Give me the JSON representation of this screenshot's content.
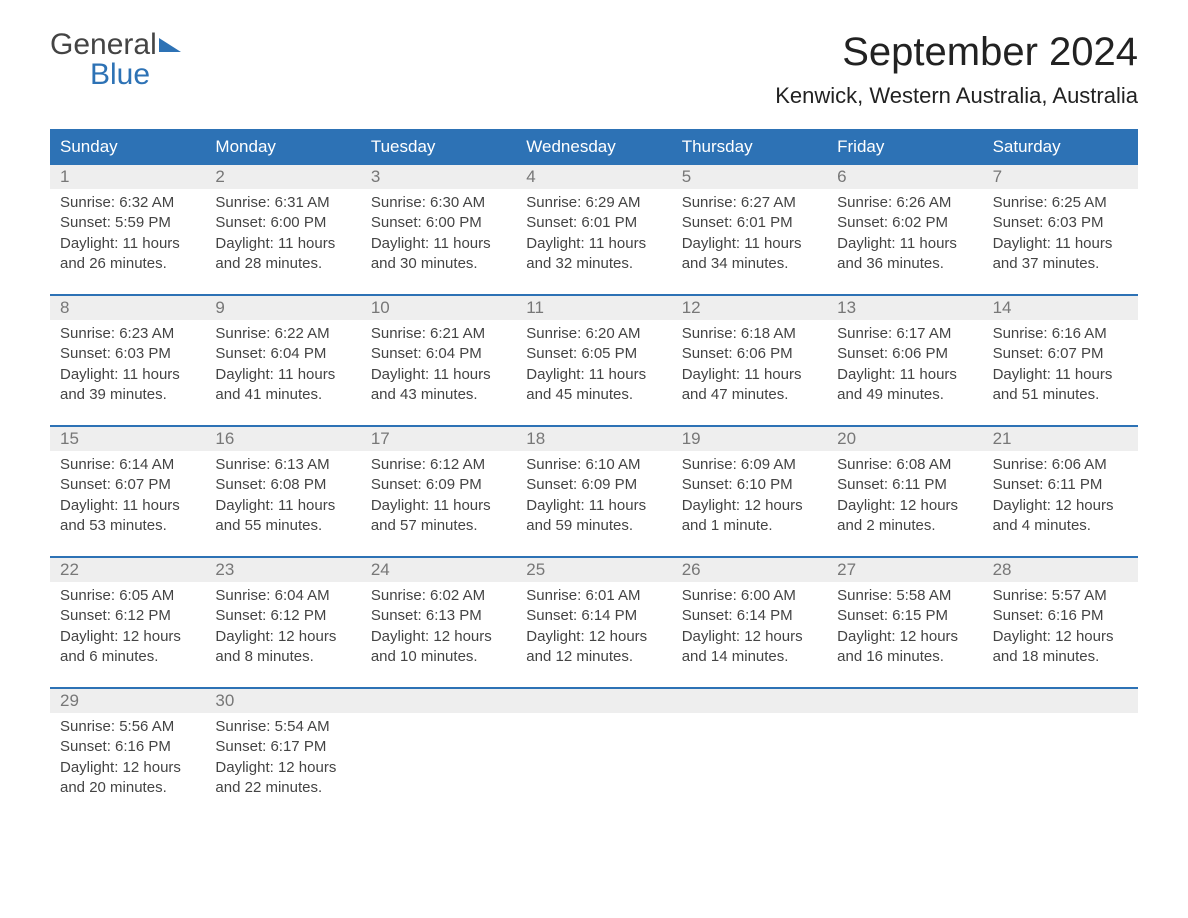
{
  "logo": {
    "line1": "General",
    "line2": "Blue"
  },
  "title": "September 2024",
  "location": "Kenwick, Western Australia, Australia",
  "colors": {
    "header_bg": "#2d72b5",
    "header_text": "#ffffff",
    "daynum_bg": "#eeeeee",
    "daynum_text": "#777777",
    "body_text": "#444444",
    "page_bg": "#ffffff",
    "week_divider": "#2d72b5"
  },
  "typography": {
    "title_fontsize": 40,
    "location_fontsize": 22,
    "header_fontsize": 17,
    "body_fontsize": 15
  },
  "day_headers": [
    "Sunday",
    "Monday",
    "Tuesday",
    "Wednesday",
    "Thursday",
    "Friday",
    "Saturday"
  ],
  "days": [
    {
      "n": "1",
      "sunrise": "6:32 AM",
      "sunset": "5:59 PM",
      "daylight": "11 hours and 26 minutes."
    },
    {
      "n": "2",
      "sunrise": "6:31 AM",
      "sunset": "6:00 PM",
      "daylight": "11 hours and 28 minutes."
    },
    {
      "n": "3",
      "sunrise": "6:30 AM",
      "sunset": "6:00 PM",
      "daylight": "11 hours and 30 minutes."
    },
    {
      "n": "4",
      "sunrise": "6:29 AM",
      "sunset": "6:01 PM",
      "daylight": "11 hours and 32 minutes."
    },
    {
      "n": "5",
      "sunrise": "6:27 AM",
      "sunset": "6:01 PM",
      "daylight": "11 hours and 34 minutes."
    },
    {
      "n": "6",
      "sunrise": "6:26 AM",
      "sunset": "6:02 PM",
      "daylight": "11 hours and 36 minutes."
    },
    {
      "n": "7",
      "sunrise": "6:25 AM",
      "sunset": "6:03 PM",
      "daylight": "11 hours and 37 minutes."
    },
    {
      "n": "8",
      "sunrise": "6:23 AM",
      "sunset": "6:03 PM",
      "daylight": "11 hours and 39 minutes."
    },
    {
      "n": "9",
      "sunrise": "6:22 AM",
      "sunset": "6:04 PM",
      "daylight": "11 hours and 41 minutes."
    },
    {
      "n": "10",
      "sunrise": "6:21 AM",
      "sunset": "6:04 PM",
      "daylight": "11 hours and 43 minutes."
    },
    {
      "n": "11",
      "sunrise": "6:20 AM",
      "sunset": "6:05 PM",
      "daylight": "11 hours and 45 minutes."
    },
    {
      "n": "12",
      "sunrise": "6:18 AM",
      "sunset": "6:06 PM",
      "daylight": "11 hours and 47 minutes."
    },
    {
      "n": "13",
      "sunrise": "6:17 AM",
      "sunset": "6:06 PM",
      "daylight": "11 hours and 49 minutes."
    },
    {
      "n": "14",
      "sunrise": "6:16 AM",
      "sunset": "6:07 PM",
      "daylight": "11 hours and 51 minutes."
    },
    {
      "n": "15",
      "sunrise": "6:14 AM",
      "sunset": "6:07 PM",
      "daylight": "11 hours and 53 minutes."
    },
    {
      "n": "16",
      "sunrise": "6:13 AM",
      "sunset": "6:08 PM",
      "daylight": "11 hours and 55 minutes."
    },
    {
      "n": "17",
      "sunrise": "6:12 AM",
      "sunset": "6:09 PM",
      "daylight": "11 hours and 57 minutes."
    },
    {
      "n": "18",
      "sunrise": "6:10 AM",
      "sunset": "6:09 PM",
      "daylight": "11 hours and 59 minutes."
    },
    {
      "n": "19",
      "sunrise": "6:09 AM",
      "sunset": "6:10 PM",
      "daylight": "12 hours and 1 minute."
    },
    {
      "n": "20",
      "sunrise": "6:08 AM",
      "sunset": "6:11 PM",
      "daylight": "12 hours and 2 minutes."
    },
    {
      "n": "21",
      "sunrise": "6:06 AM",
      "sunset": "6:11 PM",
      "daylight": "12 hours and 4 minutes."
    },
    {
      "n": "22",
      "sunrise": "6:05 AM",
      "sunset": "6:12 PM",
      "daylight": "12 hours and 6 minutes."
    },
    {
      "n": "23",
      "sunrise": "6:04 AM",
      "sunset": "6:12 PM",
      "daylight": "12 hours and 8 minutes."
    },
    {
      "n": "24",
      "sunrise": "6:02 AM",
      "sunset": "6:13 PM",
      "daylight": "12 hours and 10 minutes."
    },
    {
      "n": "25",
      "sunrise": "6:01 AM",
      "sunset": "6:14 PM",
      "daylight": "12 hours and 12 minutes."
    },
    {
      "n": "26",
      "sunrise": "6:00 AM",
      "sunset": "6:14 PM",
      "daylight": "12 hours and 14 minutes."
    },
    {
      "n": "27",
      "sunrise": "5:58 AM",
      "sunset": "6:15 PM",
      "daylight": "12 hours and 16 minutes."
    },
    {
      "n": "28",
      "sunrise": "5:57 AM",
      "sunset": "6:16 PM",
      "daylight": "12 hours and 18 minutes."
    },
    {
      "n": "29",
      "sunrise": "5:56 AM",
      "sunset": "6:16 PM",
      "daylight": "12 hours and 20 minutes."
    },
    {
      "n": "30",
      "sunrise": "5:54 AM",
      "sunset": "6:17 PM",
      "daylight": "12 hours and 22 minutes."
    }
  ],
  "labels": {
    "sunrise": "Sunrise: ",
    "sunset": "Sunset: ",
    "daylight": "Daylight: "
  }
}
